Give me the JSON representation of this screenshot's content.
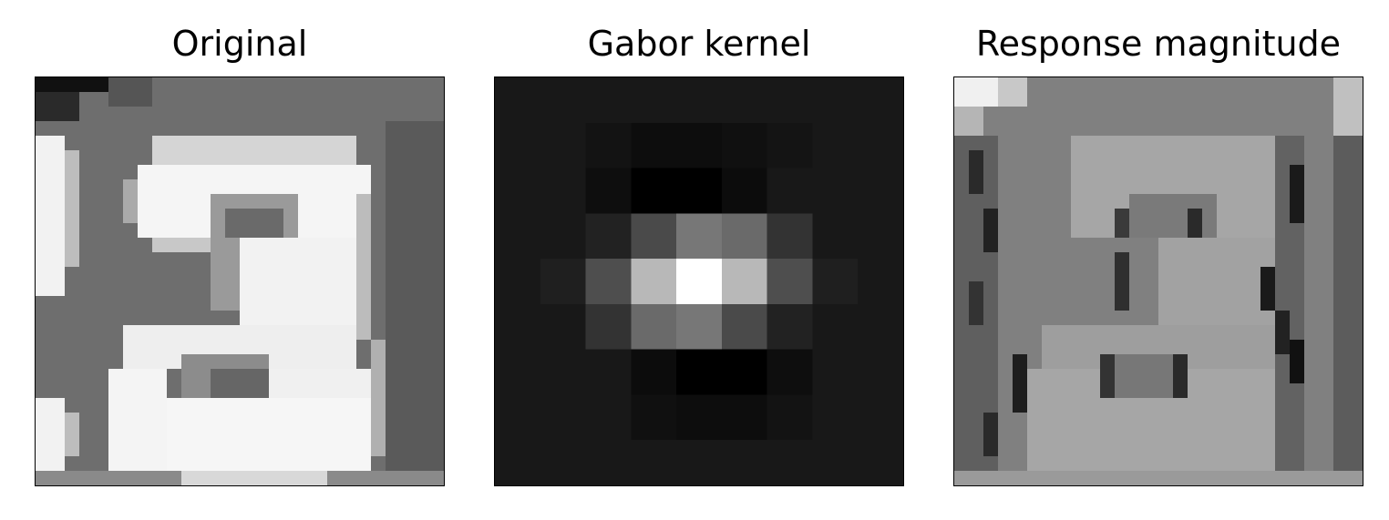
{
  "panels": [
    {
      "title": "Original"
    },
    {
      "title": "Gabor kernel"
    },
    {
      "title": "Response magnitude"
    }
  ]
}
